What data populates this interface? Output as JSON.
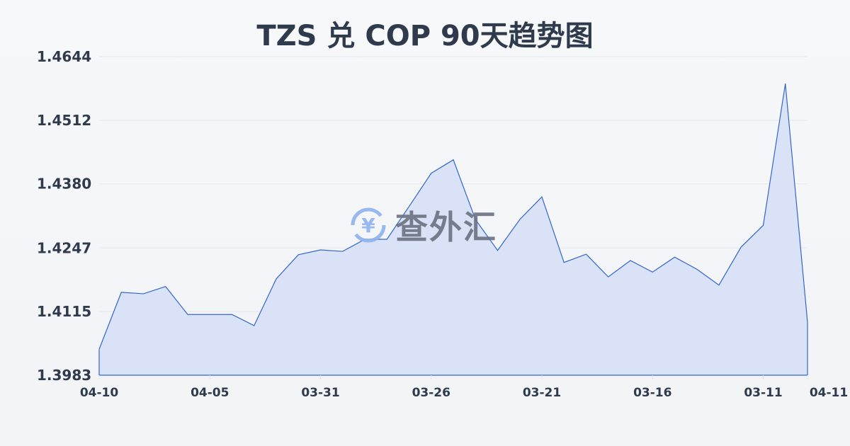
{
  "chart_data": {
    "type": "area",
    "title": "TZS 兑 COP 90天趋势图",
    "xlabel": "",
    "ylabel": "",
    "categories": [
      "04-10",
      "04-09",
      "04-08",
      "04-07",
      "04-06",
      "04-05",
      "04-04",
      "04-03",
      "04-02",
      "04-01",
      "03-31",
      "03-30",
      "03-29",
      "03-28",
      "03-27",
      "03-26",
      "03-25",
      "03-24",
      "03-23",
      "03-22",
      "03-21",
      "03-20",
      "03-19",
      "03-18",
      "03-17",
      "03-16",
      "03-15",
      "03-14",
      "03-13",
      "03-12",
      "03-11",
      "03-10",
      "04-11"
    ],
    "values": [
      1.4037,
      1.4155,
      1.4152,
      1.4167,
      1.4109,
      1.4109,
      1.4109,
      1.4086,
      1.4183,
      1.4233,
      1.4243,
      1.424,
      1.4265,
      1.4265,
      1.4333,
      1.4402,
      1.443,
      1.4306,
      1.4242,
      1.4306,
      1.4353,
      1.4217,
      1.4234,
      1.4187,
      1.4221,
      1.4197,
      1.4228,
      1.4203,
      1.417,
      1.4249,
      1.4294,
      1.4588,
      1.4093
    ],
    "x_tick_labels": [
      "04-10",
      "04-05",
      "03-31",
      "03-26",
      "03-21",
      "03-16",
      "03-11",
      "04-11"
    ],
    "y_ticks": [
      "1.3983",
      "1.4115",
      "1.4247",
      "1.4380",
      "1.4512",
      "1.4644"
    ],
    "ylim": [
      1.3983,
      1.4644
    ],
    "grid": true,
    "colors": {
      "line": "#3366cc",
      "fill": "#d6e0f5",
      "grid": "#e3e6eb",
      "text": "#2f3a4c"
    }
  },
  "watermark": {
    "text": "查外汇",
    "icon": "yen-exchange-icon"
  }
}
